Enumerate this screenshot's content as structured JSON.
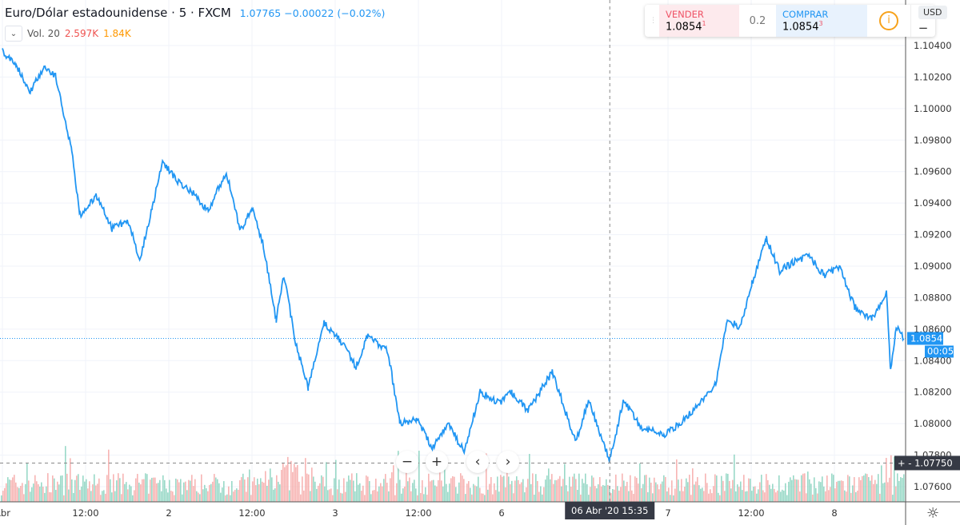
{
  "header": {
    "symbol": "Euro/Dólar estadounidense",
    "interval": "5",
    "exchange": "FXCM",
    "last": "1.07765",
    "change": "−0.00022 (−0.02%)"
  },
  "volume": {
    "label": "Vol. 20",
    "value": "2.597K",
    "ma": "1.84K",
    "toggle": "⌄"
  },
  "trade": {
    "sell_label": "VENDER",
    "sell_price": "1.0854",
    "sell_sup": "1",
    "spread": "0.2",
    "buy_label": "COMPRAR",
    "buy_price": "1.0854",
    "buy_sup": "3",
    "info": "i",
    "plus": "+",
    "minus": "−"
  },
  "currency": "USD",
  "nav": {
    "zoom_out": "−",
    "zoom_in": "+",
    "left": "‹",
    "right": "›"
  },
  "settings_icon": "☼",
  "colors": {
    "line": "#2196f3",
    "up": "#7fcfb9",
    "down": "#f5a3a0",
    "crosshair_label": "#363a45"
  },
  "chart_data": {
    "type": "line",
    "title": "Euro/Dólar estadounidense · 5 · FXCM",
    "x_unit": "trading hours since 01 Apr 00:00",
    "x": [
      0,
      2,
      4,
      6,
      7.7,
      8.7,
      10,
      11.2,
      13.5,
      15.8,
      18.1,
      19.8,
      21.6,
      23.1,
      25,
      27.4,
      29.7,
      32.3,
      34.3,
      36,
      37.7,
      39.5,
      40.6,
      42.3,
      44.1,
      46.4,
      48.7,
      51,
      52.7,
      55.6,
      57.3,
      59.7,
      62,
      64.3,
      66.6,
      68.9,
      71.8,
      73.5,
      75.8,
      79.3,
      82.7,
      84.5,
      87.6,
      89.6,
      92,
      95.4,
      97.7,
      100,
      102.9,
      104.6,
      106.4,
      108.1,
      110.2,
      112.1,
      113.9,
      116.2,
      118.5,
      120.8,
      122.9,
      125.4,
      127.5,
      128.1,
      128.9,
      130
    ],
    "y": [
      1.1036,
      1.1028,
      1.1011,
      1.1026,
      1.1021,
      1.0998,
      1.0973,
      1.0932,
      1.0945,
      1.0924,
      1.0929,
      1.0904,
      1.0937,
      1.0967,
      1.0955,
      1.0947,
      1.0935,
      1.096,
      1.0922,
      1.0937,
      1.0912,
      1.0866,
      1.0894,
      1.0851,
      1.0823,
      1.0864,
      1.0853,
      1.0836,
      1.0856,
      1.0846,
      1.08,
      1.0803,
      1.0785,
      1.08,
      1.0782,
      1.082,
      1.0813,
      1.082,
      1.0808,
      1.0833,
      1.0788,
      1.0815,
      1.0777,
      1.0815,
      1.0798,
      1.0793,
      1.08,
      1.081,
      1.0826,
      1.0866,
      1.0861,
      1.0889,
      1.0917,
      1.0897,
      1.0902,
      1.0907,
      1.0894,
      1.0899,
      1.0874,
      1.0866,
      1.0884,
      1.0833,
      1.0861,
      1.0854
    ],
    "ylim": [
      1.075,
      1.105
    ],
    "y_ticks": [
      "1.10400",
      "1.10200",
      "1.10000",
      "1.09800",
      "1.09600",
      "1.09400",
      "1.09200",
      "1.09000",
      "1.08800",
      "1.08600",
      "1.08400",
      "1.08200",
      "1.08000",
      "1.07800",
      "1.07600"
    ],
    "x_ticks": [
      {
        "h": 0,
        "label": "Abr"
      },
      {
        "h": 12,
        "label": "12:00"
      },
      {
        "h": 24,
        "label": "2"
      },
      {
        "h": 36,
        "label": "12:00"
      },
      {
        "h": 48,
        "label": "3"
      },
      {
        "h": 60,
        "label": "12:00"
      },
      {
        "h": 72,
        "label": "6"
      },
      {
        "h": 96,
        "label": "7"
      },
      {
        "h": 108,
        "label": "12:00"
      },
      {
        "h": 120,
        "label": "8"
      }
    ],
    "last_price": {
      "value": 1.08541,
      "label": "1.08541",
      "countdown": "00:05"
    },
    "crosshair": {
      "h": 87.6,
      "price": 1.0775,
      "price_label": "1.07750",
      "time_label": "06 Abr '20  15:35"
    }
  }
}
